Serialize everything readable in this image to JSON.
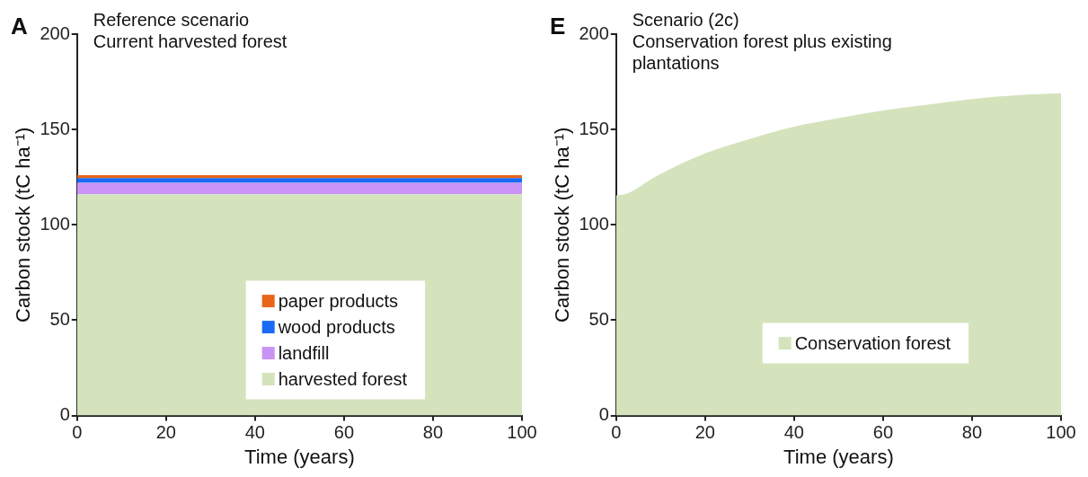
{
  "chart_data": [
    {
      "type": "area",
      "title": "Reference scenario",
      "subtitle": "Current harvested forest",
      "annotations": [
        "A"
      ],
      "xlabel": "Time (years)",
      "ylabel": "Carbon stock (tC ha⁻¹)",
      "stacked": true,
      "x": [
        0,
        100
      ],
      "series": [
        {
          "name": "harvested forest",
          "color": "#d5e3bc",
          "values": [
            116,
            116
          ]
        },
        {
          "name": "landfill",
          "color": "#c993f5",
          "values": [
            6,
            6
          ]
        },
        {
          "name": "wood products",
          "color": "#1a6af5",
          "values": [
            2.5,
            2.5
          ]
        },
        {
          "name": "paper products",
          "color": "#e8661a",
          "values": [
            1.5,
            1.5
          ]
        }
      ],
      "xlim": [
        0,
        100
      ],
      "xticks": [
        0,
        20,
        40,
        60,
        80,
        100
      ],
      "ylim": [
        0,
        200
      ],
      "yticks": [
        0,
        50,
        100,
        150,
        200
      ],
      "grid": false,
      "legend": "bottom"
    },
    {
      "type": "area",
      "title": "Scenario (2c)",
      "subtitle": "Conservation forest plus existing plantations",
      "annotations": [
        "E"
      ],
      "xlabel": "Time (years)",
      "ylabel": "Carbon stock (tC ha⁻¹)",
      "x": [
        0,
        2,
        9,
        20,
        30,
        40,
        50,
        60,
        70,
        80,
        90,
        100
      ],
      "series": [
        {
          "name": "Conservation forest",
          "color": "#d5e3bc",
          "values": [
            115.5,
            116,
            125.5,
            137.5,
            145,
            151.5,
            156,
            160,
            163,
            166,
            168,
            169
          ]
        }
      ],
      "xlim": [
        0,
        100
      ],
      "xticks": [
        0,
        20,
        40,
        60,
        80,
        100
      ],
      "ylim": [
        0,
        200
      ],
      "yticks": [
        0,
        50,
        100,
        150,
        200
      ],
      "grid": false,
      "legend": "bottom"
    }
  ]
}
